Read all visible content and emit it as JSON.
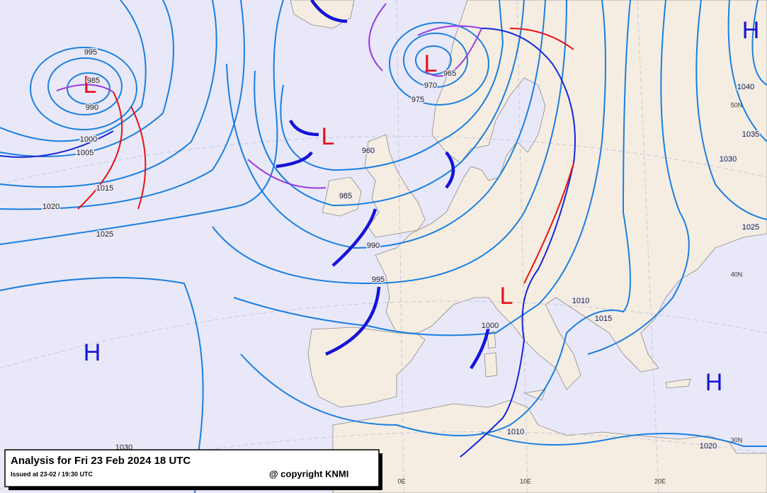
{
  "title": "Analysis for Fri 23 Feb 2024 18 UTC",
  "issued": "Issued at 23-02 / 19:30 UTC",
  "copyright": "@ copyright KNMI",
  "pressure_centers": [
    "L",
    "L",
    "L",
    "L",
    "H",
    "H",
    "H"
  ],
  "isobar_labels": [
    "995",
    "985",
    "990",
    "1000",
    "1005",
    "1015",
    "1020",
    "1025",
    "1030",
    "960",
    "985",
    "990",
    "995",
    "975",
    "970",
    "965",
    "1010",
    "1015",
    "1000",
    "1010",
    "1020",
    "1040",
    "1035",
    "1030",
    "1025"
  ],
  "graticule": {
    "lat": [
      "50N",
      "40N",
      "30N"
    ],
    "lon": [
      "0E",
      "10E",
      "20E"
    ]
  }
}
